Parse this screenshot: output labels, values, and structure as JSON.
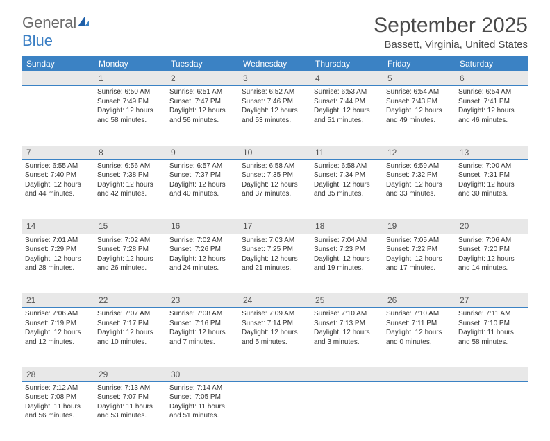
{
  "logo": {
    "word1": "General",
    "word2": "Blue"
  },
  "title": "September 2025",
  "location": "Bassett, Virginia, United States",
  "colors": {
    "header_bg": "#3b82c4",
    "header_text": "#ffffff",
    "daynum_bg": "#e8e8e8",
    "daynum_border": "#3b82c4",
    "body_text": "#333333",
    "title_text": "#4a4a4a",
    "logo_gray": "#6b6b6b",
    "logo_blue": "#3b7fc4"
  },
  "typography": {
    "title_fontsize": 30,
    "location_fontsize": 15,
    "header_fontsize": 12,
    "daynum_fontsize": 12,
    "cell_fontsize": 10
  },
  "calendar": {
    "type": "table",
    "columns": [
      "Sunday",
      "Monday",
      "Tuesday",
      "Wednesday",
      "Thursday",
      "Friday",
      "Saturday"
    ],
    "weeks": [
      {
        "nums": [
          "",
          "1",
          "2",
          "3",
          "4",
          "5",
          "6"
        ],
        "cells": [
          null,
          {
            "sunrise": "Sunrise: 6:50 AM",
            "sunset": "Sunset: 7:49 PM",
            "daylight": "Daylight: 12 hours and 58 minutes."
          },
          {
            "sunrise": "Sunrise: 6:51 AM",
            "sunset": "Sunset: 7:47 PM",
            "daylight": "Daylight: 12 hours and 56 minutes."
          },
          {
            "sunrise": "Sunrise: 6:52 AM",
            "sunset": "Sunset: 7:46 PM",
            "daylight": "Daylight: 12 hours and 53 minutes."
          },
          {
            "sunrise": "Sunrise: 6:53 AM",
            "sunset": "Sunset: 7:44 PM",
            "daylight": "Daylight: 12 hours and 51 minutes."
          },
          {
            "sunrise": "Sunrise: 6:54 AM",
            "sunset": "Sunset: 7:43 PM",
            "daylight": "Daylight: 12 hours and 49 minutes."
          },
          {
            "sunrise": "Sunrise: 6:54 AM",
            "sunset": "Sunset: 7:41 PM",
            "daylight": "Daylight: 12 hours and 46 minutes."
          }
        ]
      },
      {
        "nums": [
          "7",
          "8",
          "9",
          "10",
          "11",
          "12",
          "13"
        ],
        "cells": [
          {
            "sunrise": "Sunrise: 6:55 AM",
            "sunset": "Sunset: 7:40 PM",
            "daylight": "Daylight: 12 hours and 44 minutes."
          },
          {
            "sunrise": "Sunrise: 6:56 AM",
            "sunset": "Sunset: 7:38 PM",
            "daylight": "Daylight: 12 hours and 42 minutes."
          },
          {
            "sunrise": "Sunrise: 6:57 AM",
            "sunset": "Sunset: 7:37 PM",
            "daylight": "Daylight: 12 hours and 40 minutes."
          },
          {
            "sunrise": "Sunrise: 6:58 AM",
            "sunset": "Sunset: 7:35 PM",
            "daylight": "Daylight: 12 hours and 37 minutes."
          },
          {
            "sunrise": "Sunrise: 6:58 AM",
            "sunset": "Sunset: 7:34 PM",
            "daylight": "Daylight: 12 hours and 35 minutes."
          },
          {
            "sunrise": "Sunrise: 6:59 AM",
            "sunset": "Sunset: 7:32 PM",
            "daylight": "Daylight: 12 hours and 33 minutes."
          },
          {
            "sunrise": "Sunrise: 7:00 AM",
            "sunset": "Sunset: 7:31 PM",
            "daylight": "Daylight: 12 hours and 30 minutes."
          }
        ]
      },
      {
        "nums": [
          "14",
          "15",
          "16",
          "17",
          "18",
          "19",
          "20"
        ],
        "cells": [
          {
            "sunrise": "Sunrise: 7:01 AM",
            "sunset": "Sunset: 7:29 PM",
            "daylight": "Daylight: 12 hours and 28 minutes."
          },
          {
            "sunrise": "Sunrise: 7:02 AM",
            "sunset": "Sunset: 7:28 PM",
            "daylight": "Daylight: 12 hours and 26 minutes."
          },
          {
            "sunrise": "Sunrise: 7:02 AM",
            "sunset": "Sunset: 7:26 PM",
            "daylight": "Daylight: 12 hours and 24 minutes."
          },
          {
            "sunrise": "Sunrise: 7:03 AM",
            "sunset": "Sunset: 7:25 PM",
            "daylight": "Daylight: 12 hours and 21 minutes."
          },
          {
            "sunrise": "Sunrise: 7:04 AM",
            "sunset": "Sunset: 7:23 PM",
            "daylight": "Daylight: 12 hours and 19 minutes."
          },
          {
            "sunrise": "Sunrise: 7:05 AM",
            "sunset": "Sunset: 7:22 PM",
            "daylight": "Daylight: 12 hours and 17 minutes."
          },
          {
            "sunrise": "Sunrise: 7:06 AM",
            "sunset": "Sunset: 7:20 PM",
            "daylight": "Daylight: 12 hours and 14 minutes."
          }
        ]
      },
      {
        "nums": [
          "21",
          "22",
          "23",
          "24",
          "25",
          "26",
          "27"
        ],
        "cells": [
          {
            "sunrise": "Sunrise: 7:06 AM",
            "sunset": "Sunset: 7:19 PM",
            "daylight": "Daylight: 12 hours and 12 minutes."
          },
          {
            "sunrise": "Sunrise: 7:07 AM",
            "sunset": "Sunset: 7:17 PM",
            "daylight": "Daylight: 12 hours and 10 minutes."
          },
          {
            "sunrise": "Sunrise: 7:08 AM",
            "sunset": "Sunset: 7:16 PM",
            "daylight": "Daylight: 12 hours and 7 minutes."
          },
          {
            "sunrise": "Sunrise: 7:09 AM",
            "sunset": "Sunset: 7:14 PM",
            "daylight": "Daylight: 12 hours and 5 minutes."
          },
          {
            "sunrise": "Sunrise: 7:10 AM",
            "sunset": "Sunset: 7:13 PM",
            "daylight": "Daylight: 12 hours and 3 minutes."
          },
          {
            "sunrise": "Sunrise: 7:10 AM",
            "sunset": "Sunset: 7:11 PM",
            "daylight": "Daylight: 12 hours and 0 minutes."
          },
          {
            "sunrise": "Sunrise: 7:11 AM",
            "sunset": "Sunset: 7:10 PM",
            "daylight": "Daylight: 11 hours and 58 minutes."
          }
        ]
      },
      {
        "nums": [
          "28",
          "29",
          "30",
          "",
          "",
          "",
          ""
        ],
        "cells": [
          {
            "sunrise": "Sunrise: 7:12 AM",
            "sunset": "Sunset: 7:08 PM",
            "daylight": "Daylight: 11 hours and 56 minutes."
          },
          {
            "sunrise": "Sunrise: 7:13 AM",
            "sunset": "Sunset: 7:07 PM",
            "daylight": "Daylight: 11 hours and 53 minutes."
          },
          {
            "sunrise": "Sunrise: 7:14 AM",
            "sunset": "Sunset: 7:05 PM",
            "daylight": "Daylight: 11 hours and 51 minutes."
          },
          null,
          null,
          null,
          null
        ]
      }
    ]
  }
}
